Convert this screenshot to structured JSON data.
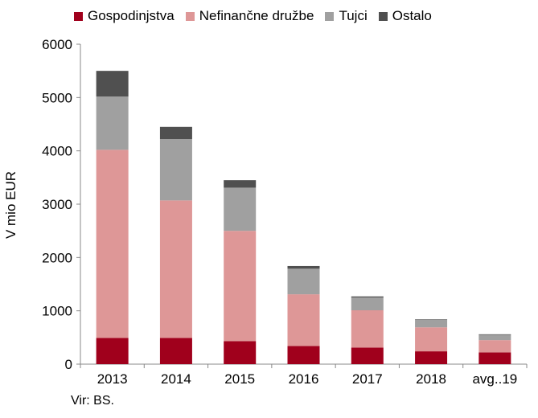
{
  "chart_data": {
    "type": "bar",
    "stacked": true,
    "categories": [
      "2013",
      "2014",
      "2015",
      "2016",
      "2017",
      "2018",
      "avg..19"
    ],
    "series": [
      {
        "name": "Gospodinjstva",
        "color": "#a0001c",
        "values": [
          490,
          490,
          430,
          340,
          310,
          240,
          220
        ]
      },
      {
        "name": "Nefinančne družbe",
        "color": "#de9797",
        "values": [
          3530,
          2580,
          2070,
          970,
          700,
          450,
          230
        ]
      },
      {
        "name": "Tujci",
        "color": "#a0a0a0",
        "values": [
          1000,
          1150,
          810,
          480,
          240,
          140,
          100
        ]
      },
      {
        "name": "Ostalo",
        "color": "#505050",
        "values": [
          480,
          230,
          140,
          50,
          20,
          10,
          10
        ]
      }
    ],
    "ylabel": "V mio EUR",
    "xlabel": "",
    "ylim": [
      0,
      6000
    ],
    "yticks": [
      "0",
      "1000",
      "2000",
      "3000",
      "4000",
      "5000",
      "6000"
    ],
    "grid": false,
    "legend_position": "top"
  },
  "source_note": "Vir: BS."
}
